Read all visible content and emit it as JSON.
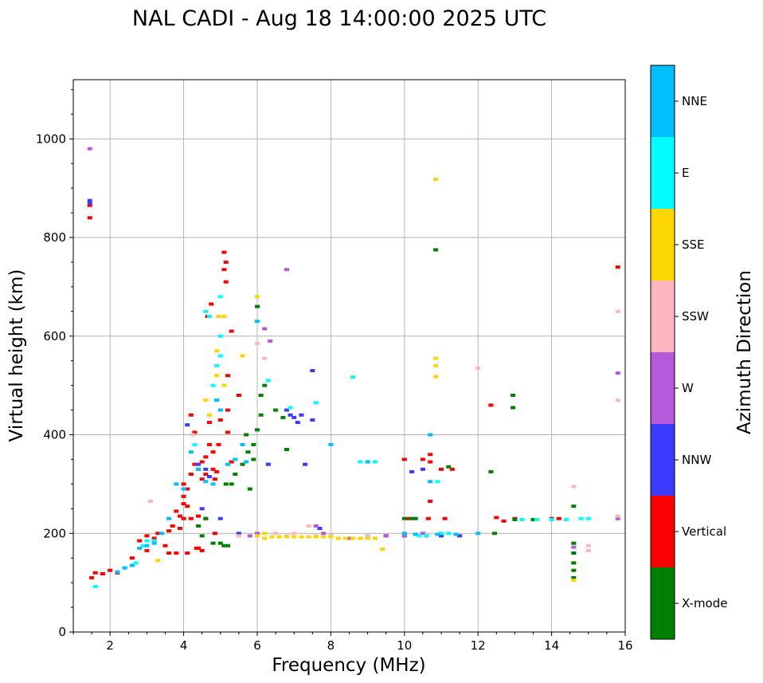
{
  "chart_data": {
    "type": "scatter",
    "title": "NAL CADI - Aug 18 14:00:00 2025 UTC",
    "xlabel": "Frequency (MHz)",
    "ylabel": "Virtual height (km)",
    "xlim": [
      1,
      16
    ],
    "ylim": [
      0,
      1120
    ],
    "xticks": [
      2,
      4,
      6,
      8,
      10,
      12,
      14,
      16
    ],
    "yticks": [
      0,
      200,
      400,
      600,
      800,
      1000
    ],
    "grid": true,
    "colorbar": {
      "label": "Azimuth Direction",
      "categories": [
        {
          "name": "X-mode",
          "color": "#008000"
        },
        {
          "name": "Vertical",
          "color": "#ff0000"
        },
        {
          "name": "NNW",
          "color": "#3b3bff"
        },
        {
          "name": "W",
          "color": "#b55ad8"
        },
        {
          "name": "SSW",
          "color": "#ffb6c1"
        },
        {
          "name": "SSE",
          "color": "#ffd700"
        },
        {
          "name": "E",
          "color": "#00ffff"
        },
        {
          "name": "NNE",
          "color": "#00bfff"
        }
      ]
    },
    "series": [
      {
        "name": "Vertical",
        "color": "#ff0000",
        "points": [
          [
            1.45,
            865
          ],
          [
            1.45,
            840
          ],
          [
            1.5,
            110
          ],
          [
            1.6,
            120
          ],
          [
            1.8,
            118
          ],
          [
            2.0,
            125
          ],
          [
            2.2,
            120
          ],
          [
            2.6,
            150
          ],
          [
            2.8,
            185
          ],
          [
            3.0,
            195
          ],
          [
            3.0,
            165
          ],
          [
            3.2,
            190
          ],
          [
            3.3,
            200
          ],
          [
            3.5,
            175
          ],
          [
            3.6,
            160
          ],
          [
            3.6,
            205
          ],
          [
            3.7,
            215
          ],
          [
            3.8,
            160
          ],
          [
            3.8,
            245
          ],
          [
            3.9,
            235
          ],
          [
            3.9,
            210
          ],
          [
            4.0,
            260
          ],
          [
            4.0,
            275
          ],
          [
            4.0,
            300
          ],
          [
            4.0,
            230
          ],
          [
            4.1,
            290
          ],
          [
            4.1,
            255
          ],
          [
            4.1,
            160
          ],
          [
            4.2,
            320
          ],
          [
            4.2,
            230
          ],
          [
            4.2,
            440
          ],
          [
            4.3,
            340
          ],
          [
            4.3,
            405
          ],
          [
            4.35,
            170
          ],
          [
            4.4,
            330
          ],
          [
            4.4,
            170
          ],
          [
            4.4,
            235
          ],
          [
            4.5,
            310
          ],
          [
            4.5,
            345
          ],
          [
            4.5,
            165
          ],
          [
            4.6,
            355
          ],
          [
            4.6,
            320
          ],
          [
            4.6,
            230
          ],
          [
            4.65,
            640
          ],
          [
            4.7,
            380
          ],
          [
            4.7,
            425
          ],
          [
            4.75,
            665
          ],
          [
            4.8,
            330
          ],
          [
            4.8,
            365
          ],
          [
            4.85,
            310
          ],
          [
            4.85,
            200
          ],
          [
            4.9,
            325
          ],
          [
            4.95,
            380
          ],
          [
            5.0,
            430
          ],
          [
            5.1,
            770
          ],
          [
            5.1,
            735
          ],
          [
            5.15,
            750
          ],
          [
            5.15,
            710
          ],
          [
            5.2,
            450
          ],
          [
            5.2,
            520
          ],
          [
            5.2,
            405
          ],
          [
            5.3,
            345
          ],
          [
            5.3,
            610
          ],
          [
            5.5,
            480
          ],
          [
            10.0,
            350
          ],
          [
            10.1,
            230
          ],
          [
            10.5,
            350
          ],
          [
            10.65,
            230
          ],
          [
            10.7,
            360
          ],
          [
            10.7,
            345
          ],
          [
            10.7,
            265
          ],
          [
            11.0,
            330
          ],
          [
            11.1,
            230
          ],
          [
            11.3,
            330
          ],
          [
            12.35,
            460
          ],
          [
            12.5,
            232
          ],
          [
            12.7,
            225
          ],
          [
            13.0,
            230
          ],
          [
            14.0,
            230
          ],
          [
            14.2,
            230
          ],
          [
            15.8,
            740
          ]
        ]
      },
      {
        "name": "X-mode",
        "color": "#008000",
        "points": [
          [
            4.4,
            215
          ],
          [
            4.5,
            195
          ],
          [
            4.6,
            230
          ],
          [
            4.8,
            180
          ],
          [
            5.0,
            180
          ],
          [
            5.1,
            175
          ],
          [
            5.2,
            175
          ],
          [
            5.15,
            300
          ],
          [
            5.3,
            300
          ],
          [
            5.4,
            320
          ],
          [
            5.6,
            340
          ],
          [
            5.7,
            400
          ],
          [
            5.75,
            365
          ],
          [
            5.8,
            290
          ],
          [
            5.9,
            350
          ],
          [
            5.9,
            380
          ],
          [
            6.0,
            410
          ],
          [
            6.0,
            660
          ],
          [
            6.1,
            480
          ],
          [
            6.1,
            440
          ],
          [
            6.2,
            500
          ],
          [
            6.5,
            450
          ],
          [
            6.7,
            435
          ],
          [
            6.8,
            370
          ],
          [
            10.0,
            230
          ],
          [
            10.2,
            230
          ],
          [
            10.3,
            230
          ],
          [
            11.2,
            335
          ],
          [
            12.35,
            325
          ],
          [
            12.45,
            200
          ],
          [
            12.95,
            480
          ],
          [
            12.95,
            455
          ],
          [
            13.0,
            228
          ],
          [
            13.5,
            228
          ],
          [
            14.6,
            125
          ],
          [
            14.6,
            140
          ],
          [
            14.6,
            160
          ],
          [
            14.6,
            180
          ],
          [
            14.6,
            110
          ],
          [
            14.6,
            255
          ],
          [
            10.85,
            775
          ]
        ]
      },
      {
        "name": "NNW",
        "color": "#3b3bff",
        "points": [
          [
            1.45,
            875
          ],
          [
            1.45,
            870
          ],
          [
            4.1,
            420
          ],
          [
            4.4,
            340
          ],
          [
            4.5,
            250
          ],
          [
            4.6,
            330
          ],
          [
            4.7,
            315
          ],
          [
            5.0,
            230
          ],
          [
            5.5,
            200
          ],
          [
            6.0,
            195
          ],
          [
            6.3,
            340
          ],
          [
            6.8,
            450
          ],
          [
            6.9,
            440
          ],
          [
            7.0,
            435
          ],
          [
            7.1,
            425
          ],
          [
            7.2,
            440
          ],
          [
            7.3,
            340
          ],
          [
            7.5,
            530
          ],
          [
            7.5,
            430
          ],
          [
            7.7,
            210
          ],
          [
            8.0,
            195
          ],
          [
            9.0,
            195
          ],
          [
            9.5,
            195
          ],
          [
            10.0,
            195
          ],
          [
            10.2,
            325
          ],
          [
            10.5,
            330
          ],
          [
            10.6,
            195
          ],
          [
            11.0,
            195
          ],
          [
            11.5,
            195
          ]
        ]
      },
      {
        "name": "W",
        "color": "#b55ad8",
        "points": [
          [
            1.45,
            980
          ],
          [
            6.2,
            615
          ],
          [
            6.35,
            590
          ],
          [
            6.8,
            735
          ],
          [
            7.6,
            215
          ],
          [
            7.8,
            200
          ],
          [
            8.5,
            190
          ],
          [
            9.0,
            190
          ],
          [
            9.5,
            195
          ],
          [
            10.0,
            195
          ],
          [
            10.5,
            200
          ],
          [
            14.6,
            172
          ],
          [
            15.8,
            525
          ],
          [
            15.8,
            230
          ],
          [
            5.5,
            195
          ],
          [
            5.8,
            195
          ],
          [
            6.0,
            200
          ]
        ]
      },
      {
        "name": "SSW",
        "color": "#ffb6c1",
        "points": [
          [
            3.1,
            265
          ],
          [
            4.25,
            400
          ],
          [
            5.5,
            195
          ],
          [
            6.0,
            585
          ],
          [
            6.2,
            555
          ],
          [
            6.8,
            195
          ],
          [
            7.4,
            215
          ],
          [
            7.6,
            195
          ],
          [
            8.0,
            195
          ],
          [
            12.0,
            535
          ],
          [
            14.6,
            295
          ],
          [
            15.0,
            175
          ],
          [
            15.0,
            165
          ],
          [
            15.8,
            650
          ],
          [
            15.8,
            470
          ],
          [
            15.8,
            235
          ],
          [
            6.5,
            200
          ],
          [
            7.0,
            200
          ],
          [
            9.0,
            195
          ]
        ]
      },
      {
        "name": "SSE",
        "color": "#ffd700",
        "points": [
          [
            3.3,
            145
          ],
          [
            4.6,
            470
          ],
          [
            4.7,
            440
          ],
          [
            4.8,
            500
          ],
          [
            4.9,
            520
          ],
          [
            4.9,
            570
          ],
          [
            4.95,
            640
          ],
          [
            5.0,
            600
          ],
          [
            5.1,
            640
          ],
          [
            5.1,
            500
          ],
          [
            5.6,
            560
          ],
          [
            6.0,
            680
          ],
          [
            6.0,
            195
          ],
          [
            6.2,
            200
          ],
          [
            6.2,
            190
          ],
          [
            6.4,
            193
          ],
          [
            6.6,
            193
          ],
          [
            6.8,
            193
          ],
          [
            7.0,
            193
          ],
          [
            7.2,
            193
          ],
          [
            7.4,
            193
          ],
          [
            7.6,
            193
          ],
          [
            7.8,
            193
          ],
          [
            8.0,
            193
          ],
          [
            8.2,
            190
          ],
          [
            8.4,
            190
          ],
          [
            8.6,
            190
          ],
          [
            8.8,
            190
          ],
          [
            9.0,
            190
          ],
          [
            9.2,
            190
          ],
          [
            9.4,
            168
          ],
          [
            10.85,
            918
          ],
          [
            10.85,
            555
          ],
          [
            10.85,
            540
          ],
          [
            10.85,
            518
          ],
          [
            14.6,
            105
          ]
        ]
      },
      {
        "name": "E",
        "color": "#00ffff",
        "points": [
          [
            1.6,
            92
          ],
          [
            2.4,
            130
          ],
          [
            2.7,
            140
          ],
          [
            2.9,
            175
          ],
          [
            3.0,
            185
          ],
          [
            3.2,
            185
          ],
          [
            4.3,
            380
          ],
          [
            4.6,
            650
          ],
          [
            4.7,
            640
          ],
          [
            4.8,
            500
          ],
          [
            4.9,
            470
          ],
          [
            4.9,
            540
          ],
          [
            5.0,
            560
          ],
          [
            5.0,
            600
          ],
          [
            5.0,
            680
          ],
          [
            6.3,
            510
          ],
          [
            6.9,
            455
          ],
          [
            7.6,
            465
          ],
          [
            8.6,
            517
          ],
          [
            8.8,
            345
          ],
          [
            9.0,
            345
          ],
          [
            9.2,
            345
          ],
          [
            10.4,
            195
          ],
          [
            10.6,
            195
          ],
          [
            10.9,
            305
          ],
          [
            11.0,
            200
          ],
          [
            11.2,
            200
          ],
          [
            13.2,
            228
          ],
          [
            13.6,
            228
          ],
          [
            14.0,
            228
          ],
          [
            14.4,
            228
          ],
          [
            14.8,
            230
          ],
          [
            15.0,
            230
          ]
        ]
      },
      {
        "name": "NNE",
        "color": "#00bfff",
        "points": [
          [
            2.2,
            122
          ],
          [
            2.4,
            130
          ],
          [
            2.6,
            135
          ],
          [
            2.8,
            170
          ],
          [
            3.0,
            175
          ],
          [
            3.2,
            180
          ],
          [
            3.4,
            200
          ],
          [
            3.6,
            230
          ],
          [
            3.8,
            300
          ],
          [
            4.0,
            290
          ],
          [
            4.2,
            365
          ],
          [
            4.4,
            330
          ],
          [
            4.6,
            305
          ],
          [
            4.8,
            300
          ],
          [
            4.9,
            470
          ],
          [
            5.0,
            450
          ],
          [
            5.2,
            340
          ],
          [
            5.4,
            350
          ],
          [
            5.6,
            380
          ],
          [
            5.7,
            345
          ],
          [
            6.0,
            630
          ],
          [
            10.7,
            400
          ],
          [
            10.7,
            305
          ],
          [
            10.9,
            198
          ],
          [
            11.4,
            198
          ],
          [
            12.0,
            200
          ],
          [
            8.0,
            380
          ],
          [
            9.0,
            345
          ],
          [
            10.0,
            200
          ],
          [
            10.3,
            198
          ]
        ]
      }
    ]
  }
}
